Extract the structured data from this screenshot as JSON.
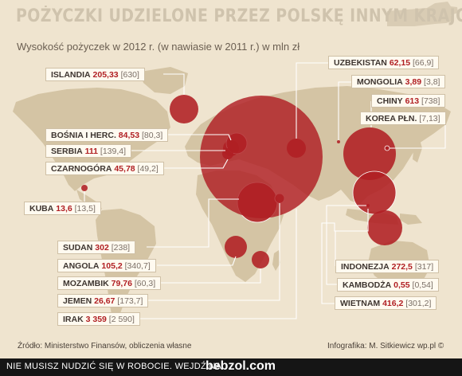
{
  "title": "POŻYCZKI UDZIELONE PRZEZ POLSKĘ INNYM KRAJOM",
  "subtitle": "Wysokość pożyczek w 2012 r. (w nawiasie w 2011 r.) w mln zł",
  "source": "Źródło: Ministerstwo Finansów, obliczenia własne",
  "credit": "Infografika: M. Sitkiewicz wp.pl ©",
  "footer": {
    "text": "NIE MUSISZ NUDZIĆ SIĘ W ROBOCIE. WEJDŹ NA",
    "logo": "bebzol.com"
  },
  "colors": {
    "bubble": "#b01f23",
    "land": "#d4c4a4",
    "background": "#efe4cf",
    "footer": "#151515"
  },
  "countries": [
    {
      "name": "ISLANDIA",
      "value_2012": "205,33",
      "value_2011": "[630]"
    },
    {
      "name": "BOŚNIA I HERC.",
      "value_2012": "84,53",
      "value_2011": "[80,3]"
    },
    {
      "name": "SERBIA",
      "value_2012": "111",
      "value_2011": "[139,4]"
    },
    {
      "name": "CZARNOGÓRA",
      "value_2012": "45,78",
      "value_2011": "[49,2]"
    },
    {
      "name": "KUBA",
      "value_2012": "13,6",
      "value_2011": "[13,5]"
    },
    {
      "name": "SUDAN",
      "value_2012": "302",
      "value_2011": "[238]"
    },
    {
      "name": "ANGOLA",
      "value_2012": "105,2",
      "value_2011": "[340,7]"
    },
    {
      "name": "MOZAMBIK",
      "value_2012": "79,76",
      "value_2011": "[60,3]"
    },
    {
      "name": "JEMEN",
      "value_2012": "26,67",
      "value_2011": "[173,7]"
    },
    {
      "name": "IRAK",
      "value_2012": "3 359",
      "value_2011": "[2 590]"
    },
    {
      "name": "UZBEKISTAN",
      "value_2012": "62,15",
      "value_2011": "[66,9]"
    },
    {
      "name": "MONGOLIA",
      "value_2012": "3,89",
      "value_2011": "[3,8]"
    },
    {
      "name": "CHINY",
      "value_2012": "613",
      "value_2011": "[738]"
    },
    {
      "name": "KOREA PŁN.",
      "value_2012": "",
      "value_2011": "[7,13]"
    },
    {
      "name": "INDONEZJA",
      "value_2012": "272,5",
      "value_2011": "[317]"
    },
    {
      "name": "KAMBODŻA",
      "value_2012": "0,55",
      "value_2011": "[0,54]"
    },
    {
      "name": "WIETNAM",
      "value_2012": "416,2",
      "value_2011": "[301,2]"
    }
  ]
}
